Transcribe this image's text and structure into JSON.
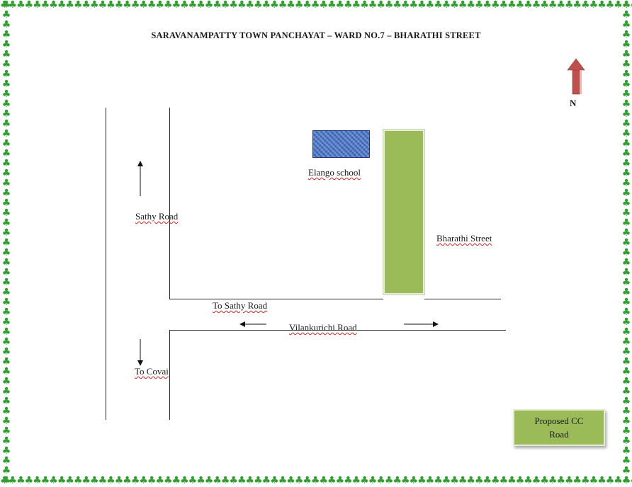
{
  "title": "SARAVANAMPATTY TOWN PANCHAYAT – WARD NO.7 – BHARATHI STREET",
  "compass": {
    "label": "N",
    "color": "#c0504d"
  },
  "labels": {
    "elango_school": "Elango school",
    "sathy_road": "Sathy Road",
    "bharathi_street": "Bharathi Street",
    "to_sathy_road": "To Sathy Road",
    "vilankurichi_road": "Vilankurichi Road",
    "to_covai": "To Covai"
  },
  "legend": {
    "line1": "Proposed CC",
    "line2": "Road"
  },
  "colors": {
    "proposed_road": "#9bbb59",
    "school": "#4a74c4",
    "border_trees": "#2f9e2f"
  }
}
